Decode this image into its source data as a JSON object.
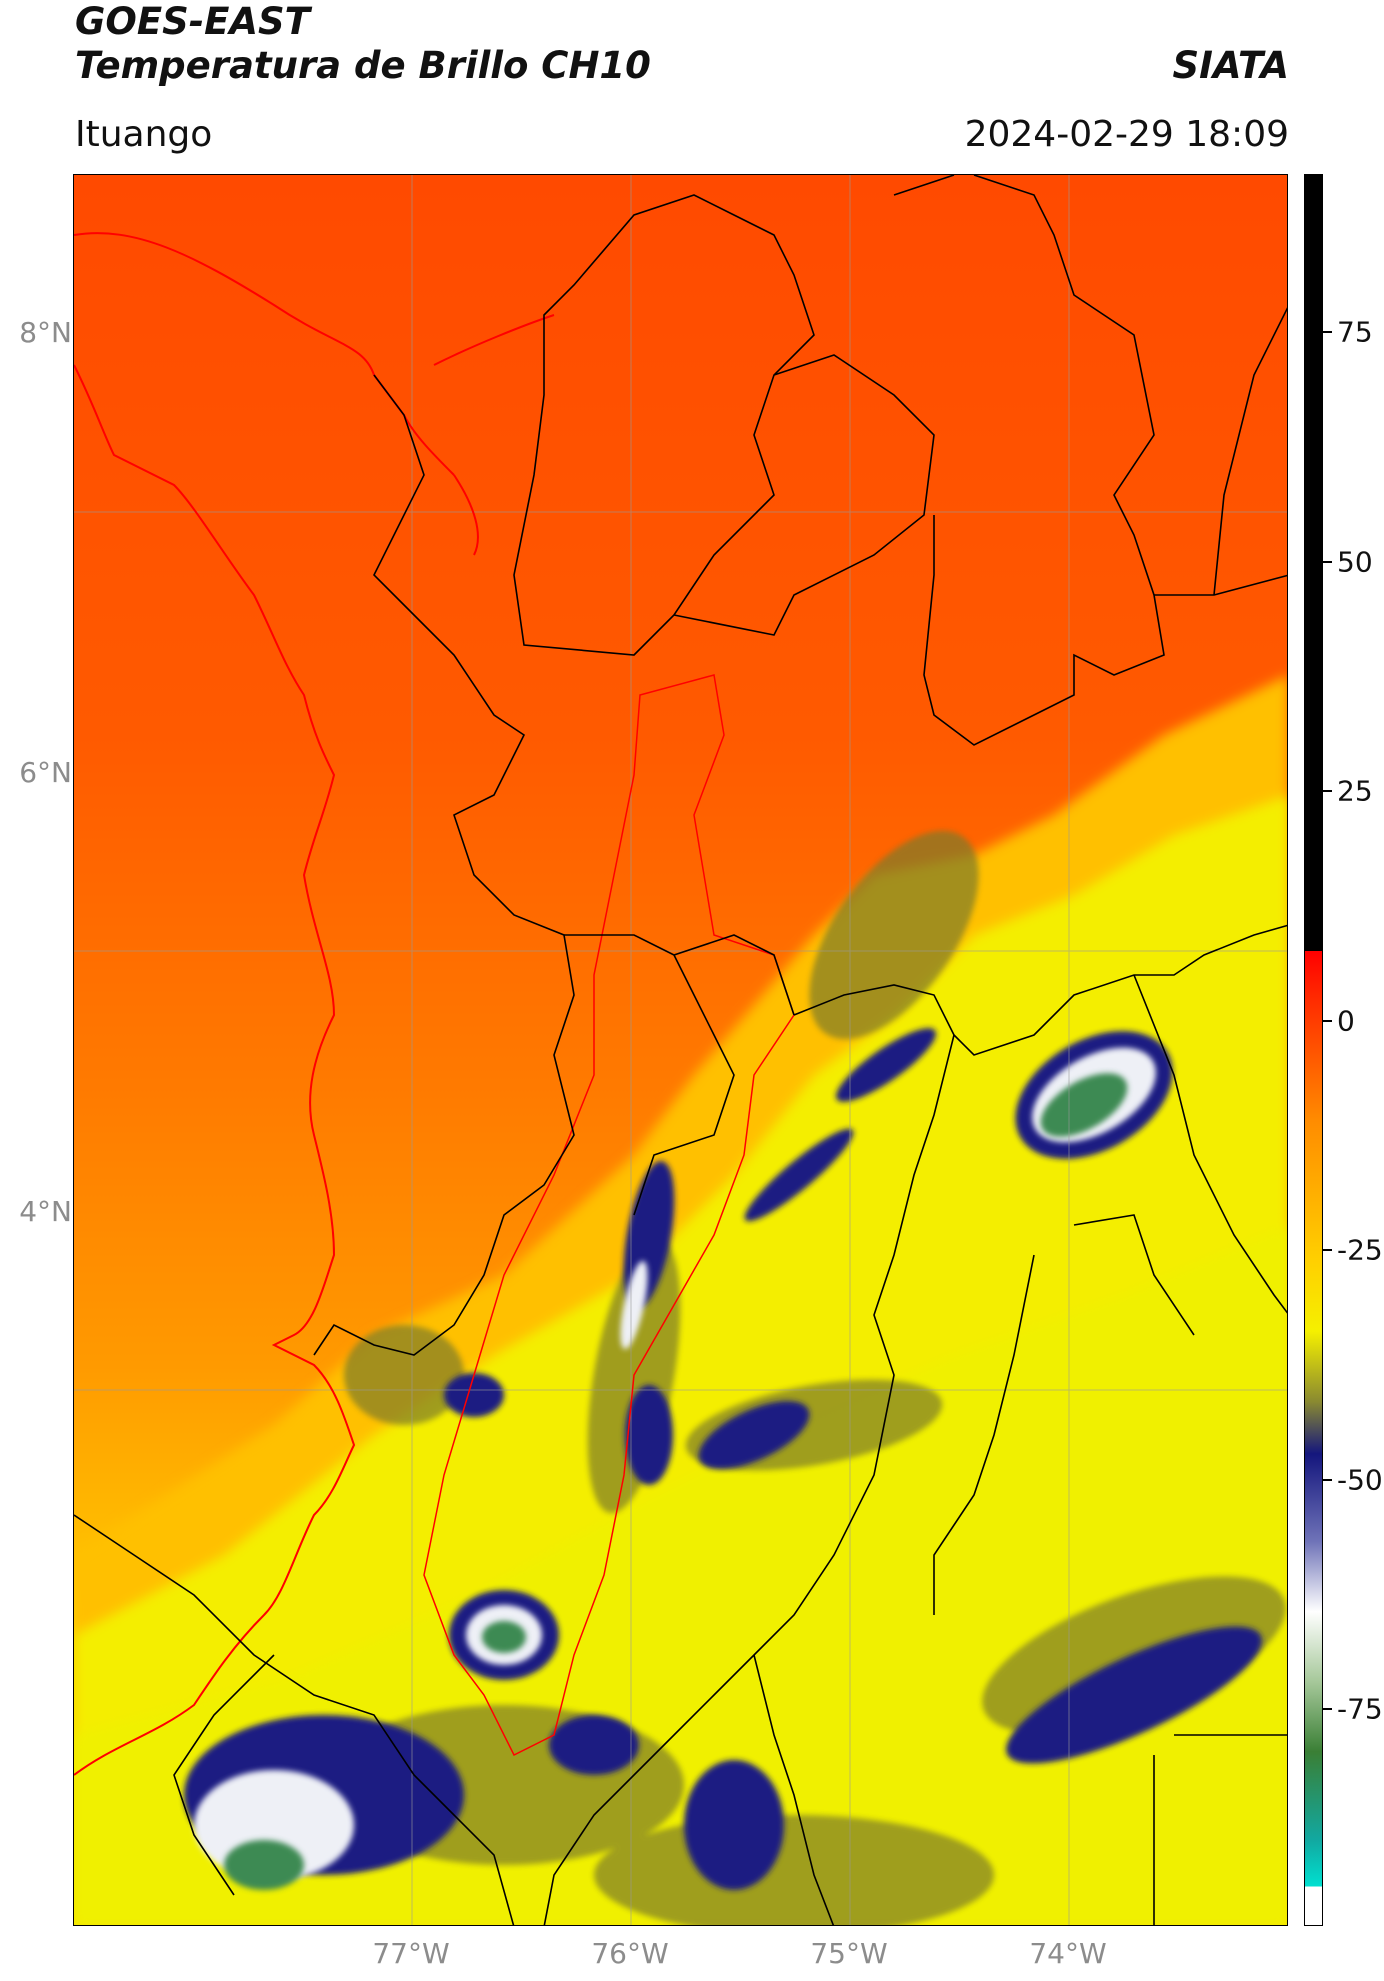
{
  "header": {
    "satellite": "GOES-EAST",
    "product": "Temperatura de Brillo CH10",
    "organization": "SIATA",
    "location": "Ituango",
    "timestamp": "2024-02-29 18:09"
  },
  "map": {
    "lat_labels": [
      "8°N",
      "6°N",
      "4°N"
    ],
    "lon_labels": [
      "77°W",
      "76°W",
      "75°W",
      "74°W"
    ],
    "basemap_colors": {
      "warm": "#ff4a00",
      "mid": "#ff8c00",
      "yellow": "#f5ee00",
      "cold_navy": "#1a1f82",
      "cold_white": "#eef0f6",
      "cold_green": "#3e8a52",
      "border_black": "#000000",
      "border_red": "#ff0000",
      "gridline": "#9a9a9a"
    }
  },
  "colorbar": {
    "labels": [
      "75",
      "50",
      "25",
      "0",
      "-25",
      "-50",
      "-75"
    ],
    "range": [
      -95,
      90
    ],
    "colors": {
      "black": "#000000",
      "red": "#ff0000",
      "orange": "#ff8c00",
      "yellow": "#f5f000",
      "olive": "#6d6d2e",
      "navy": "#14167d",
      "white": "#ffffff",
      "green": "#3a7f35",
      "cyan": "#00e0d0"
    }
  }
}
